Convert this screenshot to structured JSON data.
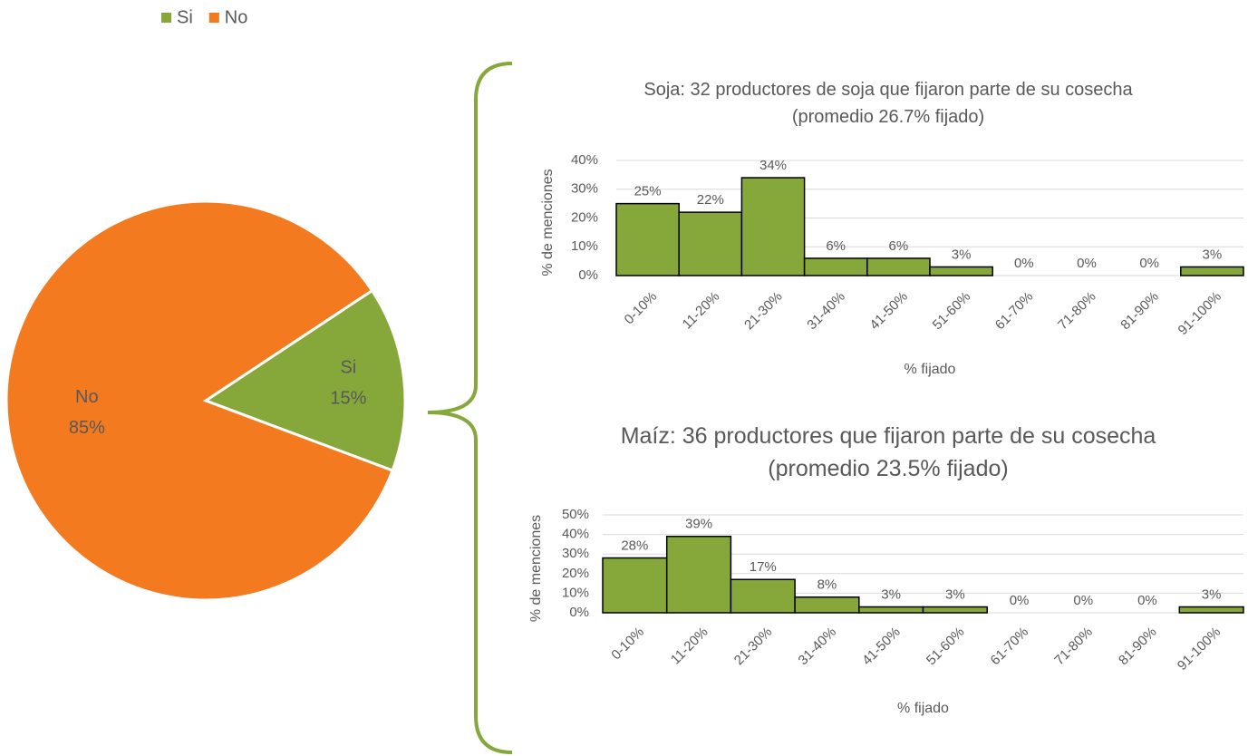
{
  "chart_data": [
    {
      "type": "pie",
      "categories": [
        "Si",
        "No"
      ],
      "values": [
        15,
        85
      ],
      "value_labels": [
        "15%",
        "85%"
      ],
      "colors": [
        "#86a83a",
        "#f47a20"
      ],
      "legend": "top"
    },
    {
      "type": "bar",
      "title": "Soja: 32 productores de soja que fijaron parte de su cosecha (promedio 26.7% fijado)",
      "x_label": "% fijado",
      "y_label": "% de menciones",
      "categories": [
        "0-10%",
        "11-20%",
        "21-30%",
        "31-40%",
        "41-50%",
        "51-60%",
        "61-70%",
        "71-80%",
        "81-90%",
        "91-100%"
      ],
      "values": [
        25,
        22,
        34,
        6,
        6,
        3,
        0,
        0,
        0,
        3
      ],
      "value_labels": [
        "25%",
        "22%",
        "34%",
        "6%",
        "6%",
        "3%",
        "0%",
        "0%",
        "0%",
        "3%"
      ],
      "color": "#86a83a",
      "ylim": [
        0,
        40
      ],
      "yticks": [
        {
          "value": 0,
          "label": "0%"
        },
        {
          "value": 10,
          "label": "10%"
        },
        {
          "value": 20,
          "label": "20%"
        },
        {
          "value": 30,
          "label": "30%"
        },
        {
          "value": 40,
          "label": "40%"
        }
      ],
      "grid": true
    },
    {
      "type": "bar",
      "title": "Maíz: 36 productores que fijaron parte de su cosecha (promedio 23.5% fijado)",
      "x_label": "% fijado",
      "y_label": "% de menciones",
      "categories": [
        "0-10%",
        "11-20%",
        "21-30%",
        "31-40%",
        "41-50%",
        "51-60%",
        "61-70%",
        "71-80%",
        "81-90%",
        "91-100%"
      ],
      "values": [
        28,
        39,
        17,
        8,
        3,
        3,
        0,
        0,
        0,
        3
      ],
      "value_labels": [
        "28%",
        "39%",
        "17%",
        "8%",
        "3%",
        "3%",
        "0%",
        "0%",
        "0%",
        "3%"
      ],
      "color": "#86a83a",
      "ylim": [
        0,
        50
      ],
      "yticks": [
        {
          "value": 0,
          "label": "0%"
        },
        {
          "value": 10,
          "label": "10%"
        },
        {
          "value": 20,
          "label": "20%"
        },
        {
          "value": 30,
          "label": "30%"
        },
        {
          "value": 40,
          "label": "40%"
        },
        {
          "value": 50,
          "label": "50%"
        }
      ],
      "grid": true
    }
  ]
}
